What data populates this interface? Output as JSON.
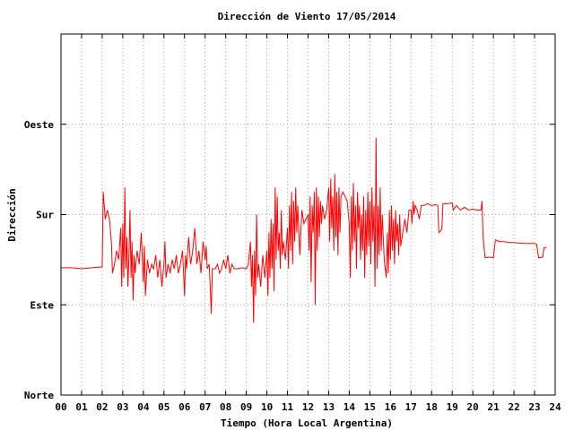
{
  "chart_data": {
    "type": "line",
    "title": "Dirección de Viento 17/05/2014",
    "xlabel": "Tiempo (Hora Local Argentina)",
    "ylabel": "Dirección",
    "xlim": [
      0,
      24
    ],
    "ylim": [
      0,
      4
    ],
    "x_ticks": [
      "00",
      "01",
      "02",
      "03",
      "04",
      "05",
      "06",
      "07",
      "08",
      "09",
      "10",
      "11",
      "12",
      "13",
      "14",
      "15",
      "16",
      "17",
      "18",
      "19",
      "20",
      "21",
      "22",
      "23",
      "24"
    ],
    "y_ticks": [
      {
        "value": 0,
        "label": "Norte"
      },
      {
        "value": 1,
        "label": "Este"
      },
      {
        "value": 2,
        "label": "Sur"
      },
      {
        "value": 3,
        "label": "Oeste"
      }
    ],
    "grid": true,
    "series": [
      {
        "color": "#ff0000",
        "points": [
          [
            0.0,
            1.41
          ],
          [
            0.5,
            1.41
          ],
          [
            1.0,
            1.4
          ],
          [
            1.5,
            1.41
          ],
          [
            2.0,
            1.42
          ],
          [
            2.05,
            2.25
          ],
          [
            2.15,
            1.95
          ],
          [
            2.25,
            2.05
          ],
          [
            2.35,
            1.95
          ],
          [
            2.45,
            1.7
          ],
          [
            2.5,
            1.35
          ],
          [
            2.6,
            1.45
          ],
          [
            2.7,
            1.6
          ],
          [
            2.8,
            1.5
          ],
          [
            2.9,
            1.85
          ],
          [
            2.95,
            1.2
          ],
          [
            3.0,
            1.9
          ],
          [
            3.05,
            1.3
          ],
          [
            3.1,
            2.3
          ],
          [
            3.15,
            1.4
          ],
          [
            3.2,
            1.75
          ],
          [
            3.25,
            1.2
          ],
          [
            3.3,
            1.55
          ],
          [
            3.35,
            2.05
          ],
          [
            3.4,
            1.3
          ],
          [
            3.45,
            1.7
          ],
          [
            3.5,
            1.05
          ],
          [
            3.55,
            1.55
          ],
          [
            3.6,
            1.35
          ],
          [
            3.7,
            1.6
          ],
          [
            3.8,
            1.45
          ],
          [
            3.9,
            1.8
          ],
          [
            4.0,
            1.25
          ],
          [
            4.05,
            1.65
          ],
          [
            4.1,
            1.1
          ],
          [
            4.2,
            1.5
          ],
          [
            4.3,
            1.35
          ],
          [
            4.4,
            1.45
          ],
          [
            4.5,
            1.4
          ],
          [
            4.6,
            1.55
          ],
          [
            4.7,
            1.3
          ],
          [
            4.8,
            1.5
          ],
          [
            4.9,
            1.2
          ],
          [
            5.0,
            1.45
          ],
          [
            5.05,
            1.7
          ],
          [
            5.1,
            1.3
          ],
          [
            5.2,
            1.45
          ],
          [
            5.3,
            1.35
          ],
          [
            5.4,
            1.5
          ],
          [
            5.5,
            1.4
          ],
          [
            5.6,
            1.55
          ],
          [
            5.7,
            1.35
          ],
          [
            5.8,
            1.45
          ],
          [
            5.9,
            1.6
          ],
          [
            6.0,
            1.1
          ],
          [
            6.05,
            1.55
          ],
          [
            6.1,
            1.4
          ],
          [
            6.2,
            1.75
          ],
          [
            6.3,
            1.45
          ],
          [
            6.4,
            1.6
          ],
          [
            6.5,
            1.85
          ],
          [
            6.6,
            1.45
          ],
          [
            6.7,
            1.6
          ],
          [
            6.8,
            1.35
          ],
          [
            6.9,
            1.7
          ],
          [
            7.0,
            1.5
          ],
          [
            7.05,
            1.65
          ],
          [
            7.1,
            1.4
          ],
          [
            7.2,
            1.45
          ],
          [
            7.3,
            0.9
          ],
          [
            7.35,
            1.4
          ],
          [
            7.5,
            1.4
          ],
          [
            7.6,
            1.45
          ],
          [
            7.7,
            1.35
          ],
          [
            7.8,
            1.4
          ],
          [
            7.9,
            1.5
          ],
          [
            8.0,
            1.4
          ],
          [
            8.1,
            1.55
          ],
          [
            8.2,
            1.35
          ],
          [
            8.3,
            1.45
          ],
          [
            8.4,
            1.4
          ],
          [
            8.6,
            1.4
          ],
          [
            8.8,
            1.41
          ],
          [
            9.0,
            1.4
          ],
          [
            9.1,
            1.45
          ],
          [
            9.2,
            1.7
          ],
          [
            9.25,
            1.2
          ],
          [
            9.3,
            1.55
          ],
          [
            9.35,
            0.8
          ],
          [
            9.4,
            1.6
          ],
          [
            9.45,
            1.1
          ],
          [
            9.5,
            2.0
          ],
          [
            9.55,
            1.3
          ],
          [
            9.6,
            1.45
          ],
          [
            9.7,
            1.2
          ],
          [
            9.8,
            1.55
          ],
          [
            9.9,
            1.3
          ],
          [
            10.0,
            1.6
          ],
          [
            10.05,
            1.1
          ],
          [
            10.1,
            1.8
          ],
          [
            10.15,
            1.3
          ],
          [
            10.2,
            1.95
          ],
          [
            10.25,
            1.4
          ],
          [
            10.3,
            1.9
          ],
          [
            10.35,
            1.15
          ],
          [
            10.4,
            2.3
          ],
          [
            10.45,
            1.5
          ],
          [
            10.5,
            2.2
          ],
          [
            10.55,
            1.6
          ],
          [
            10.6,
            1.8
          ],
          [
            10.65,
            1.4
          ],
          [
            10.7,
            2.05
          ],
          [
            10.75,
            1.55
          ],
          [
            10.8,
            1.7
          ],
          [
            10.9,
            1.5
          ],
          [
            11.0,
            1.85
          ],
          [
            11.05,
            1.4
          ],
          [
            11.1,
            2.1
          ],
          [
            11.15,
            1.6
          ],
          [
            11.2,
            2.25
          ],
          [
            11.25,
            1.45
          ],
          [
            11.3,
            2.15
          ],
          [
            11.35,
            1.7
          ],
          [
            11.4,
            2.3
          ],
          [
            11.45,
            1.8
          ],
          [
            11.5,
            2.1
          ],
          [
            11.6,
            1.55
          ],
          [
            11.7,
            2.05
          ],
          [
            11.8,
            1.9
          ],
          [
            11.9,
            1.95
          ],
          [
            12.0,
            2.0
          ],
          [
            12.05,
            1.6
          ],
          [
            12.1,
            2.2
          ],
          [
            12.15,
            1.25
          ],
          [
            12.2,
            2.1
          ],
          [
            12.25,
            1.8
          ],
          [
            12.3,
            2.25
          ],
          [
            12.35,
            1.0
          ],
          [
            12.4,
            2.3
          ],
          [
            12.45,
            1.6
          ],
          [
            12.5,
            2.2
          ],
          [
            12.55,
            1.75
          ],
          [
            12.6,
            2.15
          ],
          [
            12.65,
            1.9
          ],
          [
            12.7,
            2.1
          ],
          [
            12.8,
            1.95
          ],
          [
            12.9,
            2.05
          ],
          [
            13.0,
            2.3
          ],
          [
            13.05,
            1.7
          ],
          [
            13.1,
            2.4
          ],
          [
            13.15,
            1.85
          ],
          [
            13.2,
            2.2
          ],
          [
            13.25,
            1.6
          ],
          [
            13.3,
            2.45
          ],
          [
            13.35,
            1.75
          ],
          [
            13.4,
            2.25
          ],
          [
            13.45,
            1.55
          ],
          [
            13.5,
            2.3
          ],
          [
            13.55,
            1.8
          ],
          [
            13.6,
            2.2
          ],
          [
            13.7,
            2.25
          ],
          [
            13.8,
            2.2
          ],
          [
            13.9,
            2.15
          ],
          [
            14.0,
            1.9
          ],
          [
            14.05,
            1.3
          ],
          [
            14.1,
            2.2
          ],
          [
            14.15,
            1.6
          ],
          [
            14.2,
            2.35
          ],
          [
            14.25,
            1.7
          ],
          [
            14.3,
            2.1
          ],
          [
            14.35,
            1.4
          ],
          [
            14.4,
            2.25
          ],
          [
            14.45,
            1.85
          ],
          [
            14.5,
            2.1
          ],
          [
            14.55,
            1.5
          ],
          [
            14.6,
            2.0
          ],
          [
            14.65,
            1.6
          ],
          [
            14.7,
            2.2
          ],
          [
            14.75,
            1.3
          ],
          [
            14.8,
            2.05
          ],
          [
            14.85,
            1.55
          ],
          [
            14.9,
            2.25
          ],
          [
            14.95,
            1.65
          ],
          [
            15.0,
            2.15
          ],
          [
            15.05,
            1.45
          ],
          [
            15.1,
            2.3
          ],
          [
            15.15,
            1.7
          ],
          [
            15.2,
            2.1
          ],
          [
            15.25,
            1.2
          ],
          [
            15.3,
            2.85
          ],
          [
            15.35,
            1.4
          ],
          [
            15.4,
            2.1
          ],
          [
            15.45,
            1.55
          ],
          [
            15.5,
            2.3
          ],
          [
            15.55,
            1.6
          ],
          [
            15.6,
            2.0
          ],
          [
            15.7,
            1.5
          ],
          [
            15.8,
            1.3
          ],
          [
            15.85,
            1.8
          ],
          [
            15.9,
            1.35
          ],
          [
            15.95,
            2.05
          ],
          [
            16.0,
            1.5
          ],
          [
            16.05,
            2.1
          ],
          [
            16.1,
            1.6
          ],
          [
            16.15,
            1.95
          ],
          [
            16.2,
            1.45
          ],
          [
            16.25,
            2.05
          ],
          [
            16.3,
            1.7
          ],
          [
            16.35,
            1.9
          ],
          [
            16.4,
            1.55
          ],
          [
            16.45,
            2.0
          ],
          [
            16.5,
            1.65
          ],
          [
            16.6,
            1.8
          ],
          [
            16.7,
            1.95
          ],
          [
            16.8,
            1.8
          ],
          [
            16.9,
            2.05
          ],
          [
            17.0,
            2.05
          ],
          [
            17.05,
            1.9
          ],
          [
            17.1,
            2.15
          ],
          [
            17.15,
            2.0
          ],
          [
            17.2,
            2.1
          ],
          [
            17.3,
            2.05
          ],
          [
            17.4,
            1.95
          ],
          [
            17.5,
            2.1
          ],
          [
            17.6,
            2.1
          ],
          [
            17.8,
            2.12
          ],
          [
            18.0,
            2.1
          ],
          [
            18.2,
            2.11
          ],
          [
            18.3,
            2.1
          ],
          [
            18.35,
            1.8
          ],
          [
            18.45,
            1.82
          ],
          [
            18.5,
            1.85
          ],
          [
            18.55,
            2.12
          ],
          [
            18.8,
            2.12
          ],
          [
            19.0,
            2.13
          ],
          [
            19.05,
            2.05
          ],
          [
            19.2,
            2.1
          ],
          [
            19.4,
            2.05
          ],
          [
            19.6,
            2.08
          ],
          [
            19.8,
            2.05
          ],
          [
            20.0,
            2.06
          ],
          [
            20.2,
            2.05
          ],
          [
            20.4,
            2.05
          ],
          [
            20.45,
            2.15
          ],
          [
            20.5,
            1.75
          ],
          [
            20.6,
            1.52
          ],
          [
            20.8,
            1.53
          ],
          [
            21.0,
            1.52
          ],
          [
            21.1,
            1.72
          ],
          [
            21.3,
            1.7
          ],
          [
            21.5,
            1.7
          ],
          [
            21.8,
            1.69
          ],
          [
            22.0,
            1.69
          ],
          [
            22.4,
            1.68
          ],
          [
            22.8,
            1.68
          ],
          [
            23.0,
            1.68
          ],
          [
            23.1,
            1.67
          ],
          [
            23.2,
            1.52
          ],
          [
            23.4,
            1.53
          ],
          [
            23.45,
            1.63
          ],
          [
            23.6,
            1.64
          ]
        ]
      }
    ]
  }
}
